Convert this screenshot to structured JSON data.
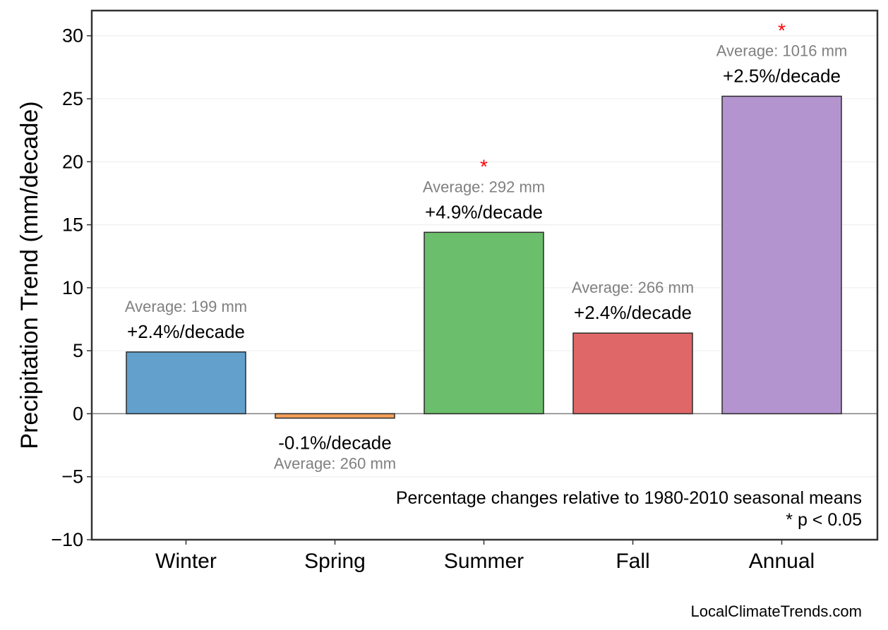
{
  "chart_data": {
    "type": "bar",
    "title": "",
    "xlabel": "",
    "ylabel": "Precipitation Trend (mm/decade)",
    "ylim": [
      -10,
      32
    ],
    "yticks": [
      -10,
      -5,
      0,
      5,
      10,
      15,
      20,
      25,
      30
    ],
    "ytick_labels": [
      "−10",
      "−5",
      "0",
      "5",
      "10",
      "15",
      "20",
      "25",
      "30"
    ],
    "grid": true,
    "categories": [
      "Winter",
      "Spring",
      "Summer",
      "Fall",
      "Annual"
    ],
    "values": [
      4.9,
      -0.35,
      14.4,
      6.4,
      25.2
    ],
    "colors": [
      "#63a1cc",
      "#f4a057",
      "#6bbe6b",
      "#e06767",
      "#b394cf"
    ],
    "percent_labels": [
      "+2.4%/decade",
      "-0.1%/decade",
      "+4.9%/decade",
      "+2.4%/decade",
      "+2.5%/decade"
    ],
    "average_labels": [
      "Average: 199 mm",
      "Average: 260 mm",
      "Average: 292 mm",
      "Average: 266 mm",
      "Average: 1016 mm"
    ],
    "significant": [
      false,
      false,
      true,
      false,
      true
    ],
    "significance_marker": "*",
    "annotations": [
      "Percentage changes relative to 1980-2010 seasonal means",
      "* p < 0.05"
    ],
    "source": "LocalClimateTrends.com"
  }
}
